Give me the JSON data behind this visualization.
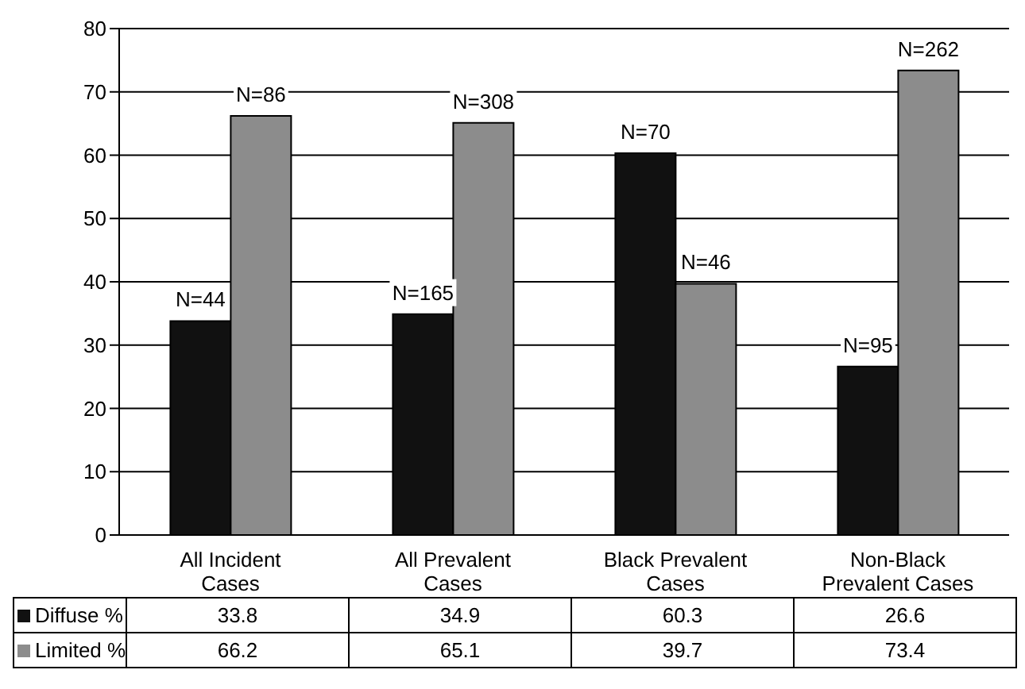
{
  "chart_data": {
    "type": "bar",
    "categories": [
      "All Incident Cases",
      "All Prevalent Cases",
      "Black Prevalent Cases",
      "Non-Black Prevalent Cases"
    ],
    "series": [
      {
        "name": "Diffuse %",
        "color": "#111111",
        "values": [
          33.8,
          34.9,
          60.3,
          26.6
        ],
        "value_labels": [
          "33.8",
          "34.9",
          "60.3",
          "26.6"
        ]
      },
      {
        "name": "Limited %",
        "color": "#8c8c8c",
        "values": [
          66.2,
          65.1,
          39.7,
          73.4
        ],
        "value_labels": [
          "66.2",
          "65.1",
          "39.7",
          "73.4"
        ]
      }
    ],
    "annotations": [
      {
        "text": "N=44",
        "x": "All Incident Cases",
        "y": 33.8
      },
      {
        "text": "N=86",
        "x": "All Incident Cases",
        "y": 66.2
      },
      {
        "text": "N=165",
        "x": "All Prevalent Cases",
        "y": 34.9
      },
      {
        "text": "N=308",
        "x": "All Prevalent Cases",
        "y": 65.1
      },
      {
        "text": "N=70",
        "x": "Black Prevalent Cases",
        "y": 60.3
      },
      {
        "text": "N=46",
        "x": "Black Prevalent Cases",
        "y": 39.7
      },
      {
        "text": "N=95",
        "x": "Non-Black Prevalent Cases",
        "y": 26.6
      },
      {
        "text": "N=262",
        "x": "Non-Black Prevalent Cases",
        "y": 73.4
      }
    ],
    "ylim": [
      0,
      80
    ],
    "yticks": [
      0,
      10,
      20,
      30,
      40,
      50,
      60,
      70,
      80
    ],
    "grid": "y",
    "legend": "bottom",
    "data_labels": true
  }
}
